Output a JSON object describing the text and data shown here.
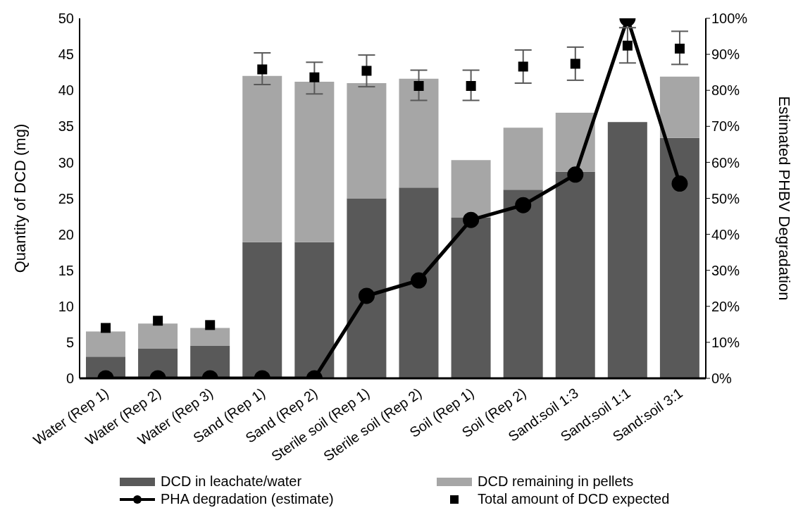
{
  "chart_data": {
    "type": "bar",
    "stacked": true,
    "ylabel": "Quantity of DCD (mg)",
    "y2label": "Estimated PHBV Degradation",
    "categories": [
      "Water (Rep 1)",
      "Water (Rep 2)",
      "Water (Rep 3)",
      "Sand (Rep 1)",
      "Sand (Rep 2)",
      "Sterile soil (Rep 1)",
      "Sterile soil (Rep 2)",
      "Soil (Rep 1)",
      "Soil (Rep 2)",
      "Sand:soil 1:3",
      "Sand:soil 1:1",
      "Sand:soil 3:1"
    ],
    "ylim": [
      0,
      50
    ],
    "yticks": [
      0,
      5,
      10,
      15,
      20,
      25,
      30,
      35,
      40,
      45,
      50
    ],
    "y2lim": [
      0,
      100
    ],
    "y2ticks": [
      {
        "value": 0,
        "label": "0%"
      },
      {
        "value": 10,
        "label": "10%"
      },
      {
        "value": 20,
        "label": "20%"
      },
      {
        "value": 30,
        "label": "30%"
      },
      {
        "value": 40,
        "label": "40%"
      },
      {
        "value": 50,
        "label": "50%"
      },
      {
        "value": 60,
        "label": "60%"
      },
      {
        "value": 70,
        "label": "70%"
      },
      {
        "value": 80,
        "label": "80%"
      },
      {
        "value": 90,
        "label": "90%"
      },
      {
        "value": 100,
        "label": "100%"
      }
    ],
    "grid": false,
    "legend": "bottom",
    "series": [
      {
        "name": "DCD in leachate/water",
        "color": "#595959",
        "values": [
          3.0,
          4.1,
          4.5,
          18.9,
          18.9,
          25.0,
          26.5,
          22.3,
          26.2,
          28.7,
          35.6,
          33.4
        ]
      },
      {
        "name": "DCD remaining in pellets",
        "color": "#a6a6a6",
        "values": [
          3.5,
          3.5,
          2.5,
          23.1,
          22.3,
          16.0,
          15.1,
          8.0,
          8.6,
          8.2,
          0,
          8.5
        ]
      },
      {
        "name": "PHA degradation (estimate)",
        "type": "line",
        "axis": "y2",
        "color": "#000000",
        "marker": "circle",
        "line_style": "solid",
        "values": [
          0,
          0,
          0,
          0,
          0,
          22.9,
          27.2,
          44.0,
          48.1,
          56.6,
          100,
          54.1
        ]
      },
      {
        "name": "Total amount of DCD expected",
        "type": "scatter",
        "marker": "square",
        "color": "#000000",
        "values": [
          7.0,
          8.0,
          7.4,
          42.9,
          41.8,
          42.7,
          40.6,
          40.6,
          43.3,
          43.7,
          46.2,
          45.8
        ],
        "errors": [
          null,
          null,
          null,
          [
            40.8,
            45.2
          ],
          [
            39.5,
            43.9
          ],
          [
            40.5,
            44.9
          ],
          [
            38.6,
            42.8
          ],
          [
            38.6,
            42.8
          ],
          [
            41.0,
            45.6
          ],
          [
            41.4,
            46.0
          ],
          [
            43.8,
            48.7
          ],
          [
            43.6,
            48.2
          ]
        ]
      }
    ]
  }
}
